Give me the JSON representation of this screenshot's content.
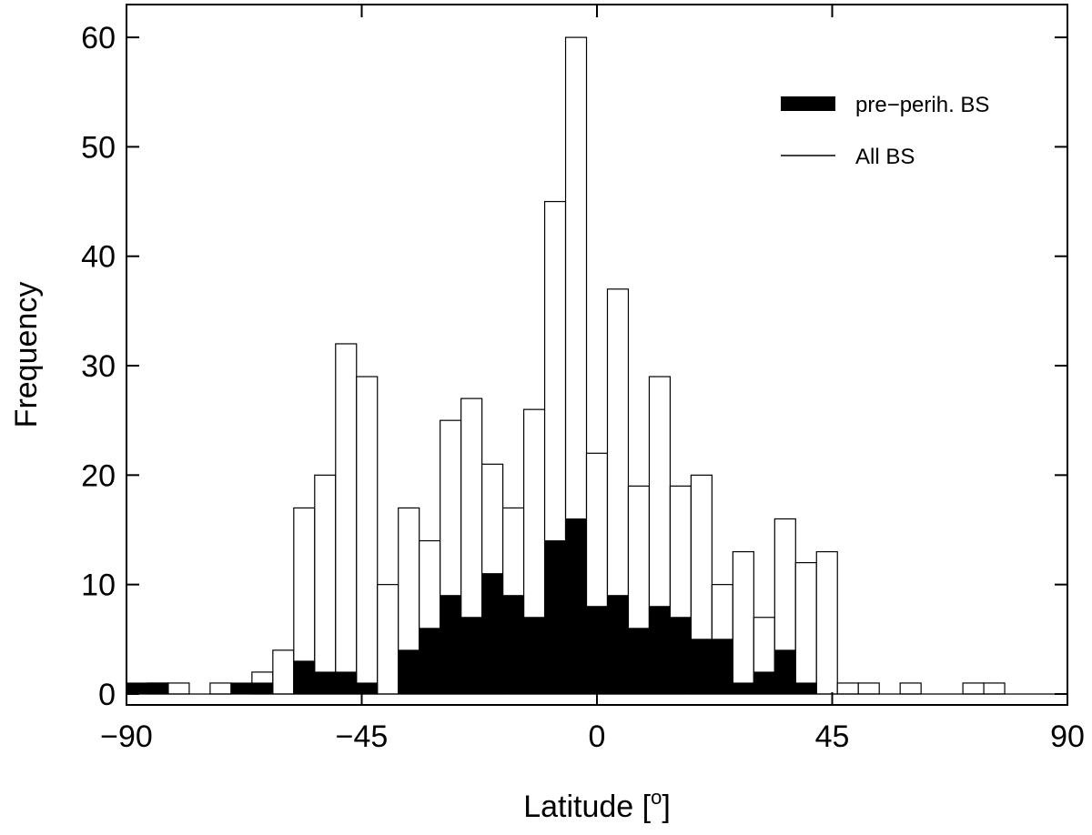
{
  "chart_data": {
    "type": "bar",
    "xlabel": "Latitude [",
    "xlabel_sup": "o",
    "xlabel_suffix": "]",
    "ylabel": "Frequency",
    "xlim": [
      -90,
      90
    ],
    "ylim": [
      -1,
      63
    ],
    "x_ticks": [
      -90,
      -45,
      0,
      45,
      90
    ],
    "x_tick_labels": [
      "−90",
      "−45",
      "0",
      "45",
      "90"
    ],
    "y_ticks": [
      0,
      10,
      20,
      30,
      40,
      50,
      60
    ],
    "y_tick_labels": [
      "0",
      "10",
      "20",
      "30",
      "40",
      "50",
      "60"
    ],
    "bin_width": 4,
    "bin_starts": [
      -90,
      -86,
      -82,
      -78,
      -74,
      -70,
      -66,
      -62,
      -58,
      -54,
      -50,
      -46,
      -42,
      -38,
      -34,
      -30,
      -26,
      -22,
      -18,
      -14,
      -10,
      -6,
      -2,
      2,
      6,
      10,
      14,
      18,
      22,
      26,
      30,
      34,
      38,
      42,
      46,
      50,
      54,
      58,
      62,
      66,
      70,
      74,
      78,
      82,
      86
    ],
    "series": [
      {
        "name": "All BS",
        "style": "outline",
        "values": [
          0,
          1,
          1,
          0,
          1,
          0,
          2,
          4,
          17,
          20,
          32,
          29,
          10,
          17,
          14,
          25,
          27,
          21,
          17,
          26,
          45,
          60,
          22,
          37,
          19,
          29,
          19,
          20,
          10,
          13,
          7,
          16,
          12,
          13,
          1,
          1,
          0,
          1,
          0,
          0,
          1,
          1,
          0,
          0,
          0
        ]
      },
      {
        "name": "pre−perih. BS",
        "style": "filled",
        "values": [
          1,
          1,
          0,
          0,
          0,
          1,
          1,
          0,
          3,
          2,
          2,
          1,
          0,
          4,
          6,
          9,
          7,
          11,
          9,
          7,
          14,
          16,
          8,
          9,
          6,
          8,
          7,
          5,
          5,
          1,
          2,
          4,
          1,
          0,
          0,
          0,
          0,
          0,
          0,
          0,
          0,
          0,
          0,
          0,
          0
        ]
      }
    ],
    "legend_position": "top-right",
    "grid": false,
    "colors": {
      "filled": "#000000",
      "outline": "#000000",
      "background": "#ffffff"
    }
  }
}
